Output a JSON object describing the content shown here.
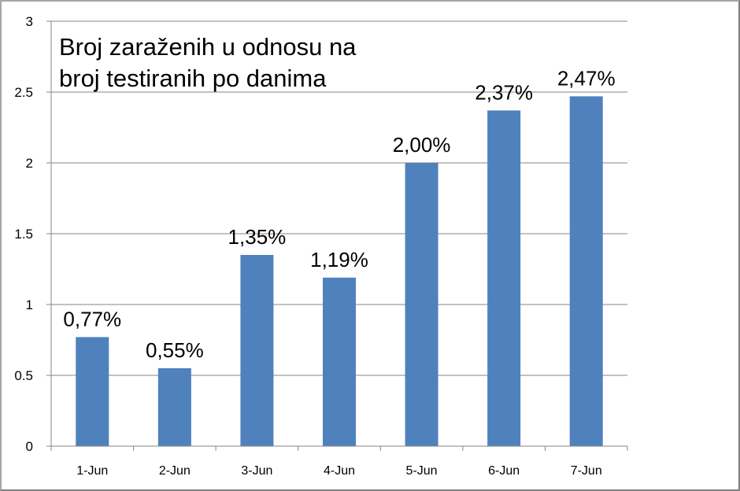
{
  "chart_data": {
    "type": "bar",
    "title_lines": [
      "Broj zaraženih u odnosu na",
      "broj testiranih po danima"
    ],
    "categories": [
      "1-Jun",
      "2-Jun",
      "3-Jun",
      "4-Jun",
      "5-Jun",
      "6-Jun",
      "7-Jun"
    ],
    "values": [
      0.77,
      0.55,
      1.35,
      1.19,
      2.0,
      2.37,
      2.47
    ],
    "data_labels": [
      "0,77%",
      "0,55%",
      "1,35%",
      "1,19%",
      "2,00%",
      "2,37%",
      "2,47%"
    ],
    "y_ticks": [
      "0",
      "0.5",
      "1",
      "1.5",
      "2",
      "2.5",
      "3"
    ],
    "ylim": [
      0,
      3
    ],
    "xlabel": "",
    "ylabel": "",
    "grid": true,
    "legend": "none",
    "bar_color": "#4f81bd",
    "grid_color": "#868686"
  }
}
